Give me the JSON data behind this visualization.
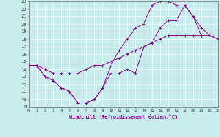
{
  "line1_x": [
    0,
    1,
    2,
    3,
    4,
    5,
    6,
    7,
    8,
    9,
    10,
    11,
    12,
    13,
    14,
    15,
    16,
    17,
    18,
    19,
    20,
    21,
    22,
    23
  ],
  "line1_y": [
    14.5,
    14.5,
    13.0,
    12.5,
    11.5,
    11.0,
    9.5,
    9.5,
    10.0,
    11.5,
    13.5,
    13.5,
    14.0,
    13.5,
    17.0,
    17.5,
    19.5,
    20.5,
    20.5,
    22.5,
    21.0,
    19.5,
    18.5,
    18.0
  ],
  "line2_x": [
    0,
    1,
    2,
    3,
    4,
    5,
    6,
    7,
    8,
    9,
    10,
    11,
    12,
    13,
    14,
    15,
    16,
    17,
    18,
    19,
    20,
    21
  ],
  "line2_y": [
    14.5,
    14.5,
    13.0,
    12.5,
    11.5,
    11.0,
    9.5,
    9.5,
    10.0,
    11.5,
    14.5,
    16.5,
    18.0,
    19.5,
    20.0,
    22.5,
    23.0,
    23.0,
    22.5,
    22.5,
    21.0,
    18.5
  ],
  "line3_x": [
    0,
    1,
    2,
    3,
    4,
    5,
    6,
    7,
    8,
    9,
    10,
    11,
    12,
    13,
    14,
    15,
    16,
    17,
    18,
    19,
    20,
    21,
    22,
    23
  ],
  "line3_y": [
    14.5,
    14.5,
    14.0,
    13.5,
    13.5,
    13.5,
    13.5,
    14.0,
    14.5,
    14.5,
    15.0,
    15.5,
    16.0,
    16.5,
    17.0,
    17.5,
    18.0,
    18.5,
    18.5,
    18.5,
    18.5,
    18.5,
    18.5,
    18.0
  ],
  "color": "#880088",
  "bg_color": "#c8ecec",
  "grid_color": "#aadddd",
  "xmin": 0,
  "xmax": 23,
  "ymin": 9,
  "ymax": 23,
  "xlabel": "Windchill (Refroidissement éolien,°C)"
}
